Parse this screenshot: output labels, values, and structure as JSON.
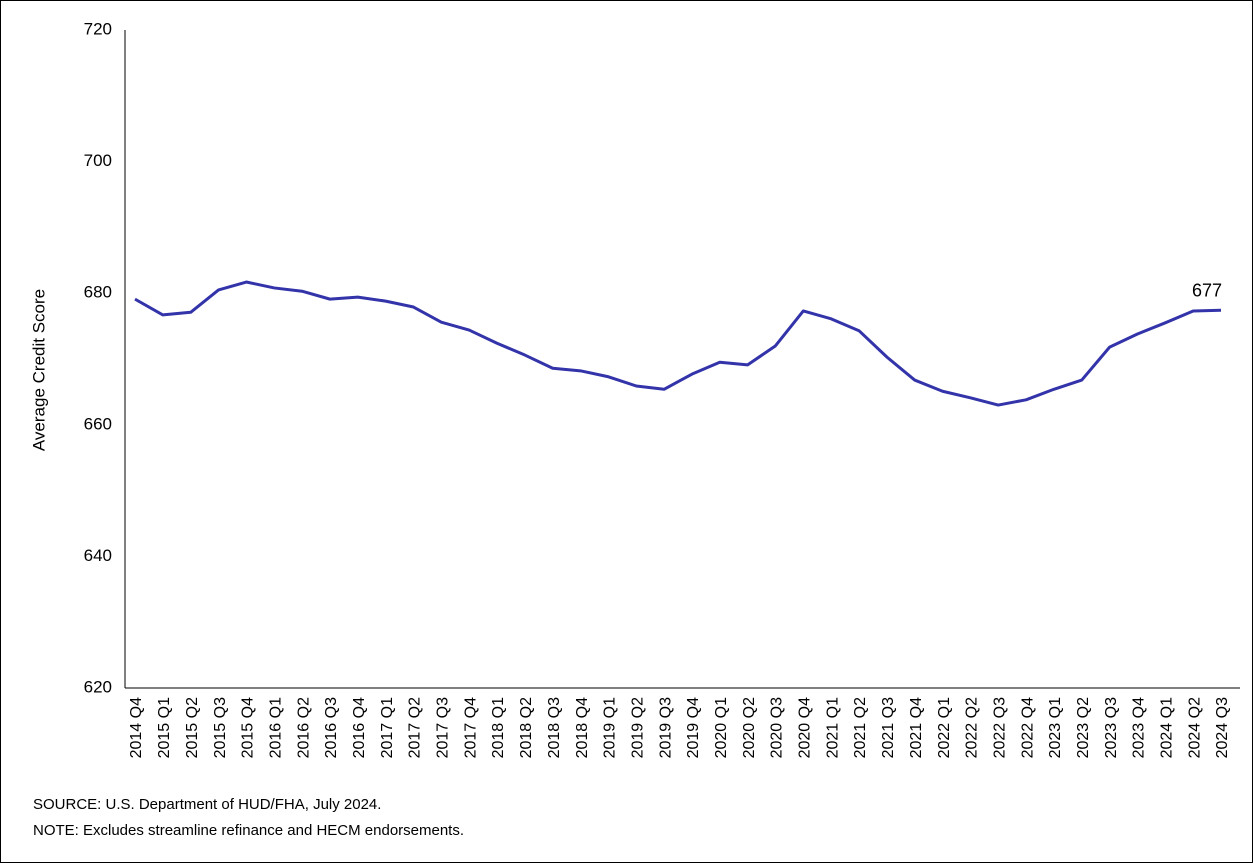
{
  "chart_data": {
    "type": "line",
    "y_label": "Average Credit Score",
    "categories": [
      "2014 Q4",
      "2015 Q1",
      "2015 Q2",
      "2015 Q3",
      "2015 Q4",
      "2016 Q1",
      "2016 Q2",
      "2016 Q3",
      "2016 Q4",
      "2017 Q1",
      "2017 Q2",
      "2017 Q3",
      "2017 Q4",
      "2018 Q1",
      "2018 Q2",
      "2018 Q3",
      "2018 Q4",
      "2019 Q1",
      "2019 Q2",
      "2019 Q3",
      "2019 Q4",
      "2020 Q1",
      "2020 Q2",
      "2020 Q3",
      "2020 Q4",
      "2021 Q1",
      "2021 Q2",
      "2021 Q3",
      "2021 Q4",
      "2022 Q1",
      "2022 Q2",
      "2022 Q3",
      "2022 Q4",
      "2023 Q1",
      "2023 Q2",
      "2023 Q3",
      "2023 Q4",
      "2024 Q1",
      "2024 Q2",
      "2024 Q3"
    ],
    "values": [
      679.1,
      676.7,
      677.1,
      680.5,
      681.7,
      680.8,
      680.3,
      679.1,
      679.4,
      678.8,
      677.9,
      675.6,
      674.4,
      672.4,
      670.6,
      668.6,
      668.2,
      667.3,
      665.9,
      665.4,
      667.7,
      669.5,
      669.1,
      672.0,
      677.3,
      676.1,
      674.3,
      670.3,
      666.8,
      665.1,
      664.1,
      663.0,
      663.8,
      665.4,
      666.8,
      671.8,
      673.8,
      675.5,
      677.3,
      677.4
    ],
    "value_labels": [
      null,
      null,
      null,
      null,
      null,
      null,
      null,
      null,
      null,
      null,
      null,
      null,
      null,
      null,
      null,
      null,
      null,
      null,
      null,
      null,
      null,
      null,
      null,
      null,
      null,
      null,
      null,
      null,
      null,
      null,
      null,
      null,
      null,
      null,
      null,
      null,
      null,
      null,
      null,
      "677"
    ],
    "color": "#3333aa",
    "ylim": [
      620,
      720
    ],
    "yticks": [
      620,
      640,
      660,
      680,
      700,
      720
    ],
    "grid": false,
    "source": "SOURCE: U.S. Department of HUD/FHA, July 2024.",
    "note": "NOTE: Excludes streamline refinance and HECM endorsements."
  }
}
